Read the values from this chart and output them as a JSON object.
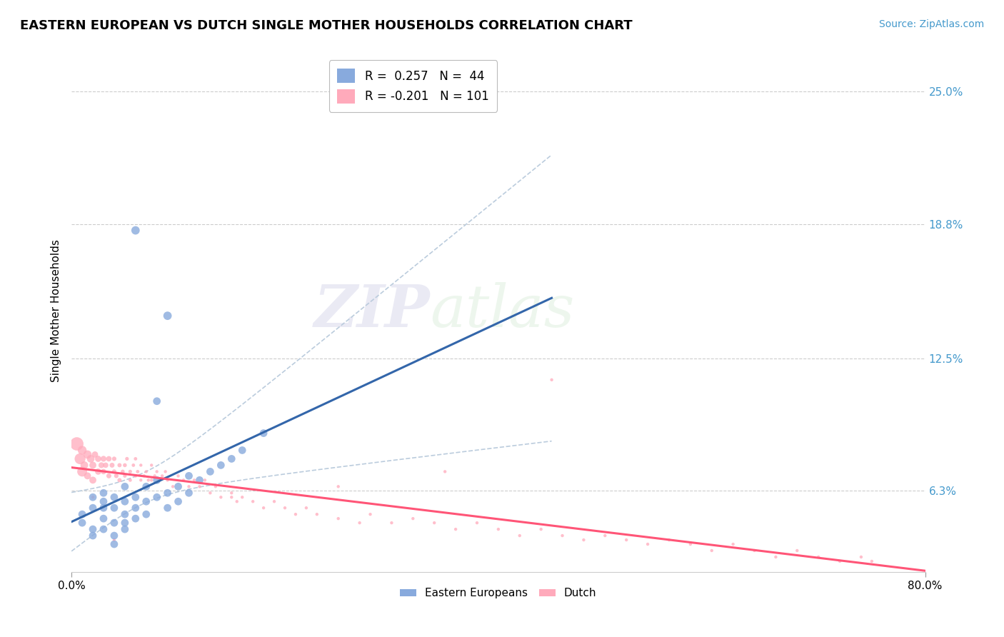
{
  "title": "EASTERN EUROPEAN VS DUTCH SINGLE MOTHER HOUSEHOLDS CORRELATION CHART",
  "source": "Source: ZipAtlas.com",
  "ylabel": "Single Mother Households",
  "ytick_labels": [
    "6.3%",
    "12.5%",
    "18.8%",
    "25.0%"
  ],
  "ytick_values": [
    0.063,
    0.125,
    0.188,
    0.25
  ],
  "xlim": [
    0.0,
    0.8
  ],
  "ylim": [
    0.025,
    0.27
  ],
  "legend_r1": "R =  0.257",
  "legend_n1": "N =  44",
  "legend_r2": "R = -0.201",
  "legend_n2": "N = 101",
  "color_eastern": "#88AADD",
  "color_dutch": "#FFAABB",
  "color_line_eastern": "#3366AA",
  "color_line_dutch": "#FF5577",
  "color_ci": "#BBCCDD",
  "watermark_zip": "ZIP",
  "watermark_atlas": "atlas",
  "title_fontsize": 13,
  "source_fontsize": 10,
  "label_fontsize": 11,
  "tick_fontsize": 11
}
